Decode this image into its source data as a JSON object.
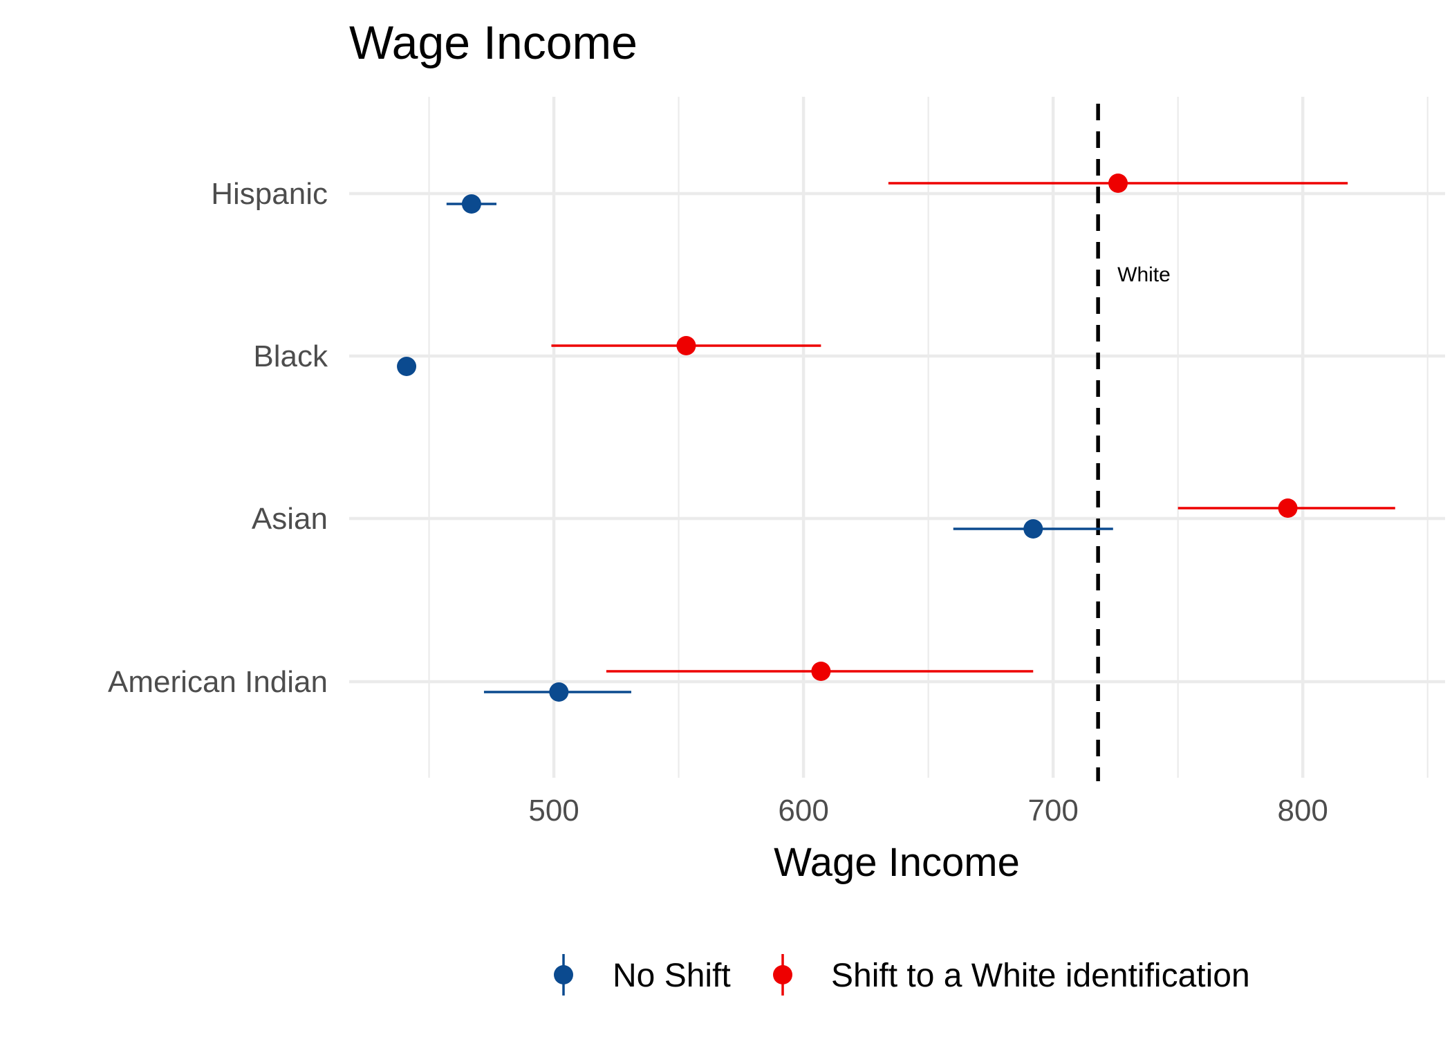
{
  "chart_data": {
    "type": "dot-range",
    "title": "Wage Income",
    "xlabel": "Wage Income",
    "ylabel": "",
    "xlim": [
      418,
      857
    ],
    "x_ticks": [
      500,
      600,
      700,
      800
    ],
    "x_minor_ticks": [
      450,
      550,
      650,
      750,
      850
    ],
    "categories": [
      "Hispanic",
      "Black",
      "Asian",
      "American Indian"
    ],
    "series": [
      {
        "name": "No Shift",
        "color": "#0b4a8f",
        "points": [
          {
            "category": "Hispanic",
            "value": 467,
            "low": 457,
            "high": 477
          },
          {
            "category": "Black",
            "value": 441,
            "low": 441,
            "high": 441
          },
          {
            "category": "Asian",
            "value": 692,
            "low": 660,
            "high": 724
          },
          {
            "category": "American Indian",
            "value": 502,
            "low": 472,
            "high": 531
          }
        ]
      },
      {
        "name": "Shift to a White identification",
        "color": "#ee0000",
        "points": [
          {
            "category": "Hispanic",
            "value": 726,
            "low": 634,
            "high": 818
          },
          {
            "category": "Black",
            "value": 553,
            "low": 499,
            "high": 607
          },
          {
            "category": "Asian",
            "value": 794,
            "low": 750,
            "high": 837
          },
          {
            "category": "American Indian",
            "value": 607,
            "low": 521,
            "high": 692
          }
        ]
      }
    ],
    "reference_line": {
      "value": 718,
      "label": "White",
      "style": "dashed",
      "color": "#000000"
    },
    "grid": true,
    "legend": {
      "position": "bottom"
    }
  }
}
